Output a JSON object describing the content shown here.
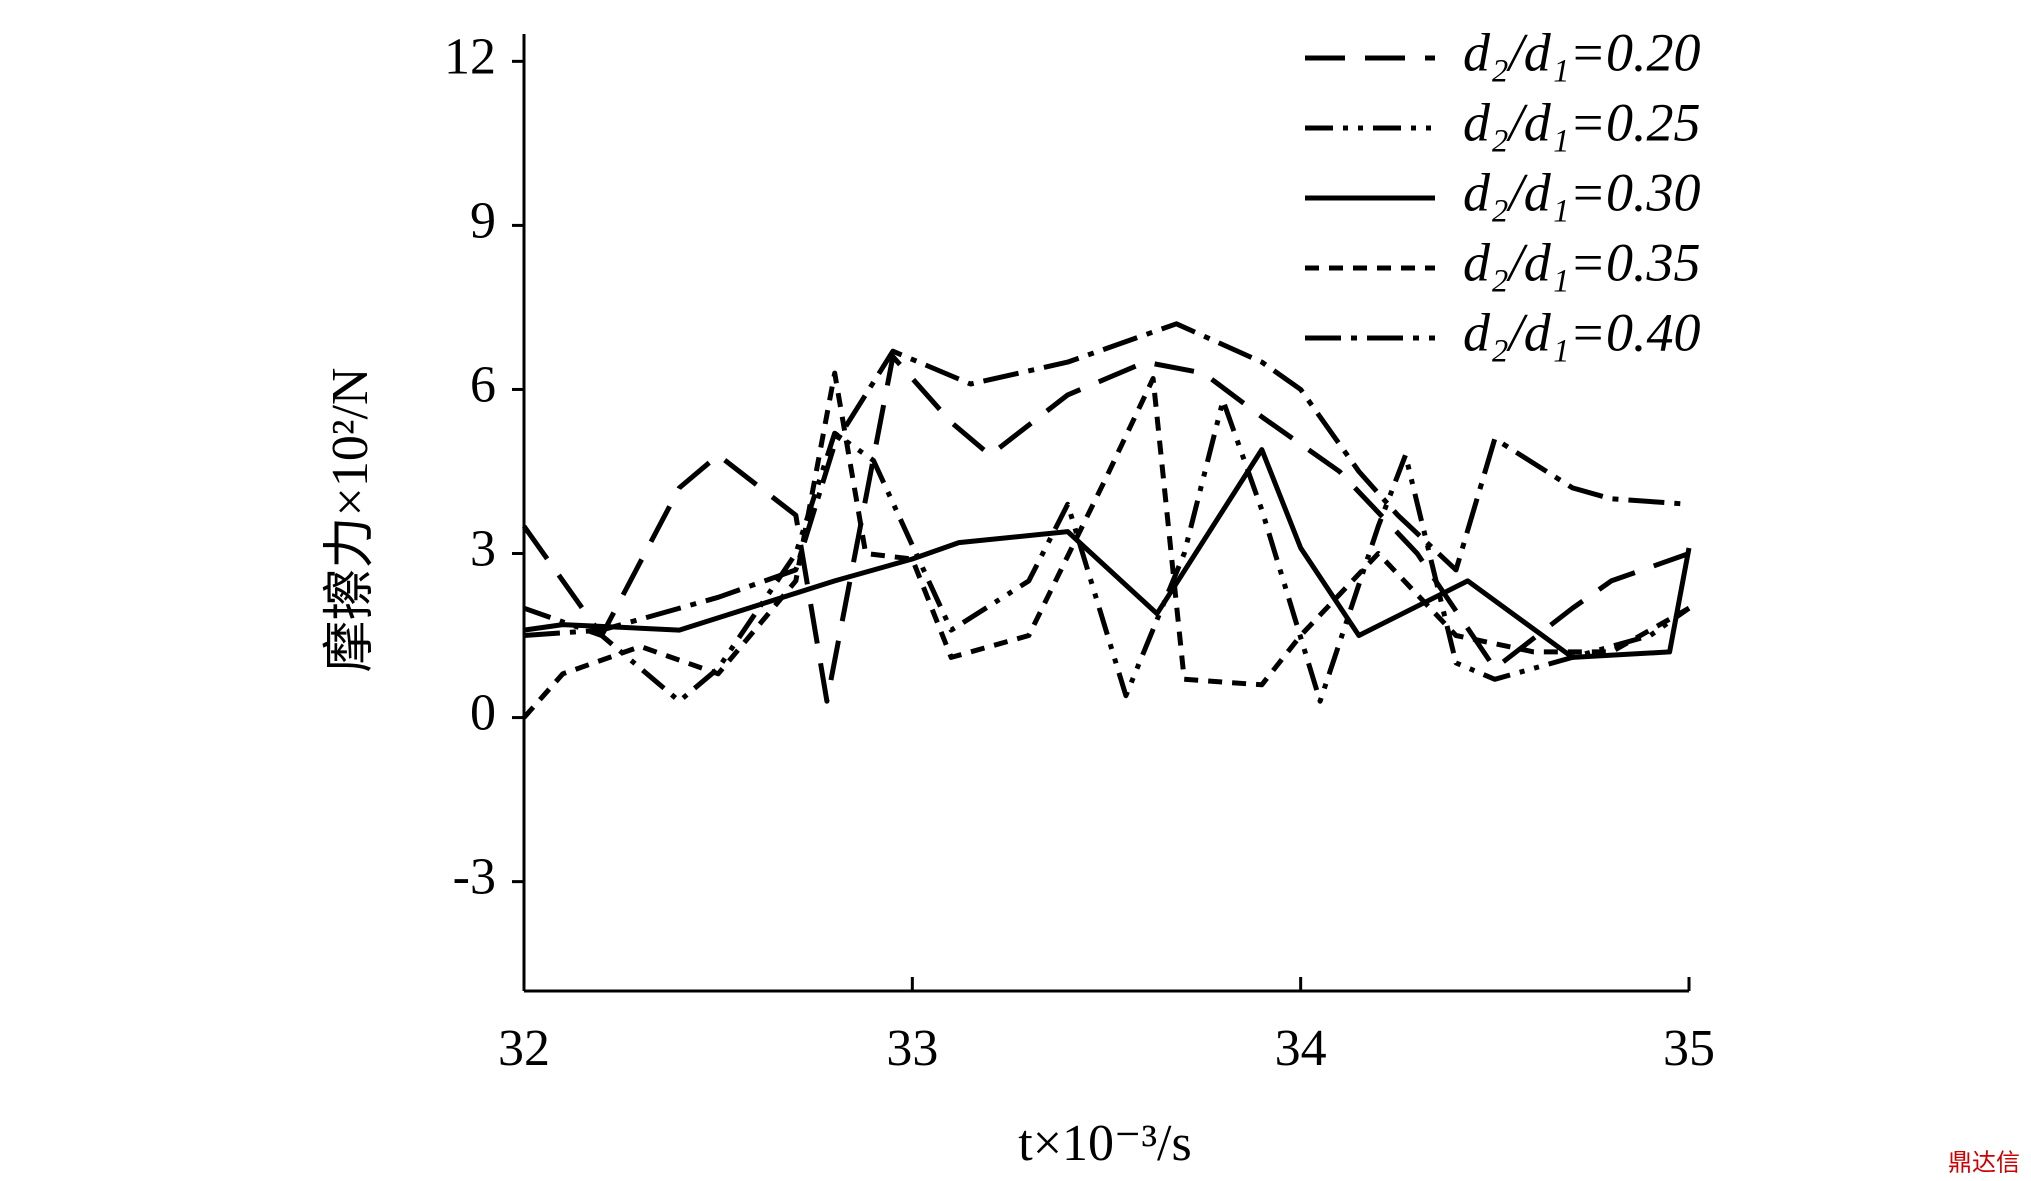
{
  "chart_data": {
    "type": "line",
    "y_label": "摩擦力×10²/N",
    "x_label": "t×10⁻³/s",
    "watermark": "鼎达信",
    "xlim": [
      32,
      35
    ],
    "xticks": [
      32,
      33,
      34,
      35
    ],
    "ylim": [
      -5,
      12.5
    ],
    "yticks": [
      -3,
      0,
      3,
      6,
      9,
      12
    ],
    "legend": "top-right",
    "series": [
      {
        "name": "d₂/d₁=0.20",
        "color": "#000000",
        "dash": "40 20",
        "x": [
          32,
          32.2,
          32.4,
          32.5,
          32.7,
          32.78,
          32.95,
          33.1,
          33.2,
          33.4,
          33.6,
          33.75,
          33.9,
          34.1,
          34.3,
          34.5,
          34.7,
          34.8,
          35
        ],
        "values": [
          3.5,
          1.5,
          4.2,
          4.8,
          3.7,
          0.3,
          6.6,
          5.4,
          4.8,
          5.9,
          6.5,
          6.3,
          5.5,
          4.5,
          3.0,
          0.9,
          2.0,
          2.5,
          3.0
        ]
      },
      {
        "name": "d₂/d₁=0.25",
        "color": "#000000",
        "dash": "28 10 5 10 5 10",
        "x": [
          32,
          32.2,
          32.4,
          32.5,
          32.7,
          32.8,
          32.9,
          33.1,
          33.3,
          33.4,
          33.55,
          33.7,
          33.8,
          33.9,
          34.05,
          34.2,
          34.27,
          34.4,
          34.5,
          34.7,
          34.9,
          35
        ],
        "values": [
          2.0,
          1.5,
          0.3,
          0.9,
          3.0,
          5.2,
          4.7,
          1.6,
          2.5,
          3.9,
          0.4,
          3.0,
          5.8,
          3.8,
          0.3,
          3.5,
          4.8,
          1.0,
          0.7,
          1.1,
          1.5,
          2.0
        ]
      },
      {
        "name": "d₂/d₁=0.30",
        "color": "#000000",
        "dash": "none",
        "x": [
          32,
          32.1,
          32.4,
          32.8,
          33.0,
          33.12,
          33.4,
          33.63,
          33.9,
          34.0,
          34.15,
          34.43,
          34.7,
          34.95,
          35
        ],
        "values": [
          1.6,
          1.7,
          1.6,
          2.5,
          2.9,
          3.2,
          3.4,
          1.9,
          4.9,
          3.1,
          1.5,
          2.5,
          1.1,
          1.2,
          3.1
        ]
      },
      {
        "name": "d₂/d₁=0.35",
        "color": "#000000",
        "dash": "14 10",
        "x": [
          32,
          32.1,
          32.3,
          32.5,
          32.7,
          32.8,
          32.88,
          33.0,
          33.1,
          33.3,
          33.5,
          33.62,
          33.7,
          33.9,
          34.0,
          34.2,
          34.4,
          34.6,
          34.8,
          35
        ],
        "values": [
          0,
          0.8,
          1.3,
          0.8,
          2.5,
          6.3,
          3.0,
          2.9,
          1.1,
          1.5,
          4.4,
          6.2,
          0.7,
          0.6,
          1.5,
          3.0,
          1.5,
          1.2,
          1.2,
          2.0
        ]
      },
      {
        "name": "d₂/d₁=0.40",
        "color": "#000000",
        "dash": "36 10 6 10",
        "x": [
          32,
          32.2,
          32.5,
          32.7,
          32.8,
          32.95,
          33.15,
          33.4,
          33.68,
          33.9,
          34.0,
          34.15,
          34.25,
          34.4,
          34.5,
          34.7,
          34.8,
          35
        ],
        "values": [
          1.5,
          1.6,
          2.2,
          2.7,
          5.0,
          6.7,
          6.1,
          6.5,
          7.2,
          6.5,
          6.0,
          4.5,
          3.7,
          2.7,
          5.1,
          4.2,
          4.0,
          3.9
        ]
      }
    ]
  }
}
